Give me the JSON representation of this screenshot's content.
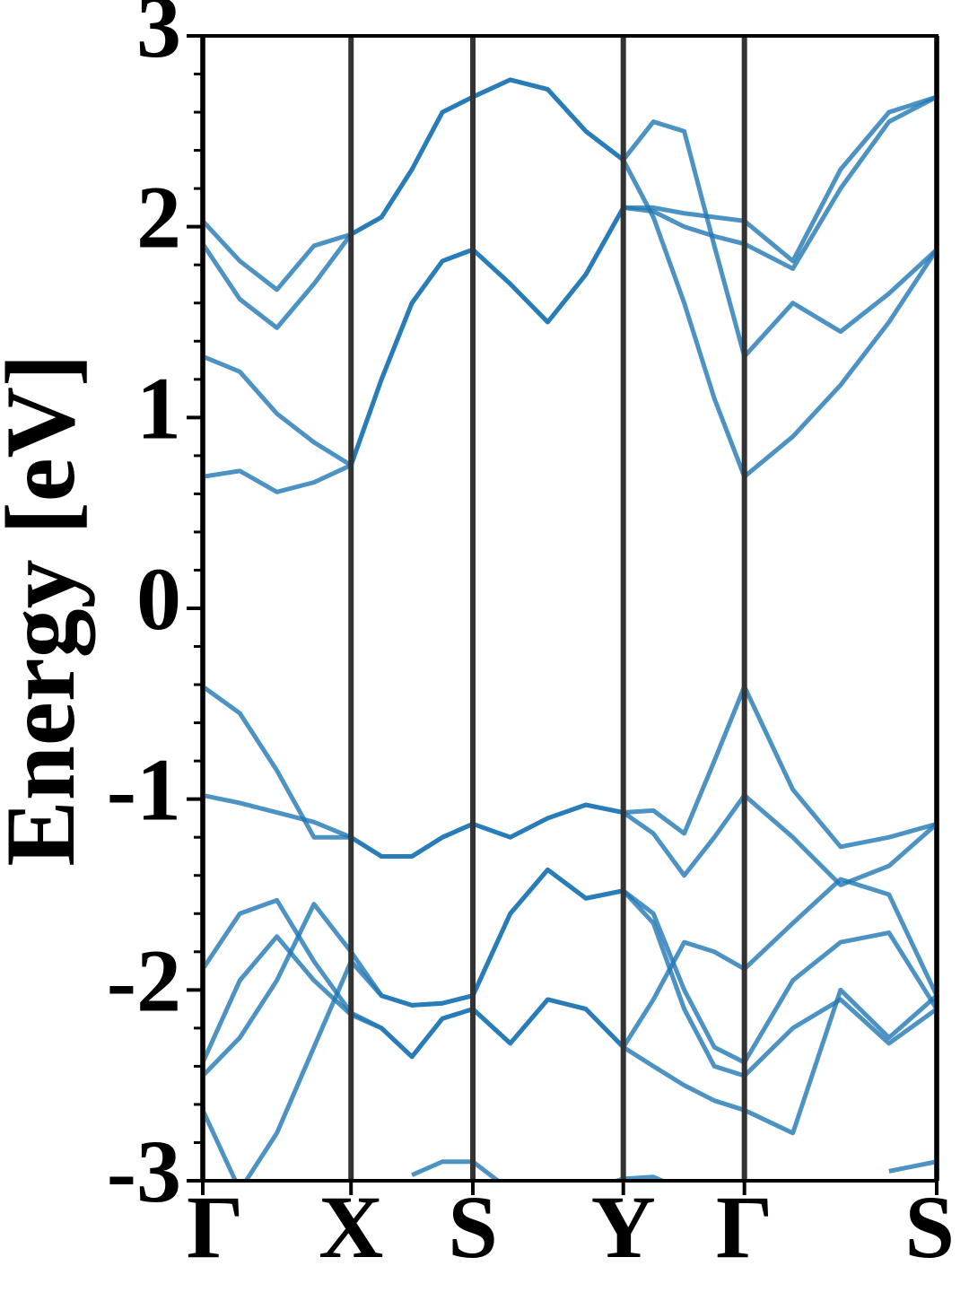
{
  "chart_data": {
    "type": "line",
    "ylabel": "Energy [eV]",
    "xlim": [
      0,
      1.0
    ],
    "xticks": [
      {
        "value": 0,
        "label": "Γ"
      },
      {
        "value": 0.202,
        "label": "X"
      },
      {
        "value": 0.368,
        "label": "S"
      },
      {
        "value": 0.573,
        "label": "Y"
      },
      {
        "value": 0.738,
        "label": "Γ"
      },
      {
        "value": 1.0,
        "label": "S"
      }
    ],
    "ylim": [
      -3,
      3
    ],
    "yticks": [
      -3,
      -2,
      -1,
      0,
      1,
      2,
      3
    ],
    "yminorticks": [
      -2.8,
      -2.6,
      -2.4,
      -2.2,
      -1.8,
      -1.6,
      -1.4,
      -1.2,
      -0.8,
      -0.6,
      -0.4,
      -0.2,
      0.2,
      0.4,
      0.6,
      0.8,
      1.2,
      1.4,
      1.6,
      1.8,
      2.2,
      2.4,
      2.6,
      2.8
    ],
    "x": [
      0,
      0.0505,
      0.101,
      0.1515,
      0.202,
      0.2435,
      0.285,
      0.3265,
      0.368,
      0.419,
      0.47,
      0.522,
      0.573,
      0.614,
      0.656,
      0.697,
      0.738,
      0.804,
      0.869,
      0.935,
      1.0
    ],
    "series": [
      {
        "color": "#1f77b4",
        "values": [
          0.69,
          0.72,
          0.61,
          0.66,
          0.75,
          1.2,
          1.6,
          1.82,
          1.88,
          1.7,
          1.5,
          1.75,
          2.1,
          2.1,
          2.07,
          2.05,
          2.03,
          1.82,
          2.3,
          2.6,
          2.68
        ]
      },
      {
        "color": "#1f77b4",
        "values": [
          1.32,
          1.24,
          1.02,
          0.87,
          0.75,
          1.2,
          1.6,
          1.82,
          1.88,
          1.7,
          1.5,
          1.75,
          2.1,
          2.08,
          2.0,
          1.95,
          1.91,
          1.78,
          2.2,
          2.55,
          2.68
        ]
      },
      {
        "color": "#1f77b4",
        "values": [
          1.91,
          1.62,
          1.47,
          1.7,
          1.96,
          2.05,
          2.3,
          2.6,
          2.68,
          2.77,
          2.72,
          2.5,
          2.35,
          2.05,
          1.6,
          1.1,
          0.69,
          0.9,
          1.17,
          1.5,
          1.88
        ]
      },
      {
        "color": "#1f77b4",
        "values": [
          2.03,
          1.82,
          1.67,
          1.9,
          1.96,
          2.05,
          2.3,
          2.6,
          2.68,
          2.77,
          2.72,
          2.5,
          2.35,
          2.55,
          2.5,
          1.9,
          1.32,
          1.6,
          1.45,
          1.65,
          1.88
        ]
      },
      {
        "color": "#1f77b4",
        "values": [
          -0.41,
          -0.55,
          -0.85,
          -1.2,
          -1.2,
          -1.3,
          -1.3,
          -1.2,
          -1.13,
          -1.2,
          -1.1,
          -1.03,
          -1.07,
          -1.06,
          -1.18,
          -0.8,
          -0.41,
          -0.95,
          -1.25,
          -1.2,
          -1.13
        ]
      },
      {
        "color": "#1f77b4",
        "values": [
          -0.98,
          -1.02,
          -1.07,
          -1.12,
          -1.2,
          -1.3,
          -1.3,
          -1.2,
          -1.13,
          -1.2,
          -1.1,
          -1.03,
          -1.07,
          -1.18,
          -1.4,
          -1.2,
          -0.98,
          -1.2,
          -1.45,
          -1.35,
          -1.13
        ]
      },
      {
        "color": "#1f77b4",
        "values": [
          -1.89,
          -1.6,
          -1.53,
          -1.85,
          -2.12,
          -2.2,
          -2.35,
          -2.15,
          -2.1,
          -2.28,
          -2.05,
          -2.1,
          -2.3,
          -2.05,
          -1.75,
          -1.8,
          -1.89,
          -1.65,
          -1.42,
          -1.5,
          -2.03
        ]
      },
      {
        "color": "#1f77b4",
        "values": [
          -2.38,
          -1.95,
          -1.72,
          -1.95,
          -2.13,
          -2.2,
          -2.35,
          -2.15,
          -2.1,
          -2.28,
          -2.05,
          -2.1,
          -2.3,
          -2.4,
          -2.5,
          -2.58,
          -2.63,
          -2.75,
          -2.0,
          -2.25,
          -2.03
        ]
      },
      {
        "color": "#1f77b4",
        "values": [
          -2.45,
          -2.25,
          -1.95,
          -1.55,
          -1.8,
          -2.03,
          -2.08,
          -2.07,
          -2.03,
          -1.6,
          -1.37,
          -1.52,
          -1.48,
          -1.6,
          -2.0,
          -2.3,
          -2.38,
          -1.95,
          -1.75,
          -1.7,
          -2.1
        ]
      },
      {
        "color": "#1f77b4",
        "values": [
          -2.63,
          -3.05,
          -2.75,
          -2.3,
          -1.85,
          -2.03,
          -2.08,
          -2.07,
          -2.03,
          -1.6,
          -1.37,
          -1.52,
          -1.48,
          -1.65,
          -2.1,
          -2.4,
          -2.45,
          -2.2,
          -2.05,
          -2.28,
          -2.1
        ]
      },
      {
        "color": "#1f77b4",
        "values": [
          null,
          null,
          null,
          null,
          null,
          null,
          -2.97,
          -2.9,
          -2.9,
          -3.05,
          null,
          -3.05,
          -2.99,
          -2.98,
          -3.05,
          null,
          null,
          null,
          null,
          -2.95,
          -2.9
        ]
      }
    ],
    "vlines_color": "#333333"
  }
}
